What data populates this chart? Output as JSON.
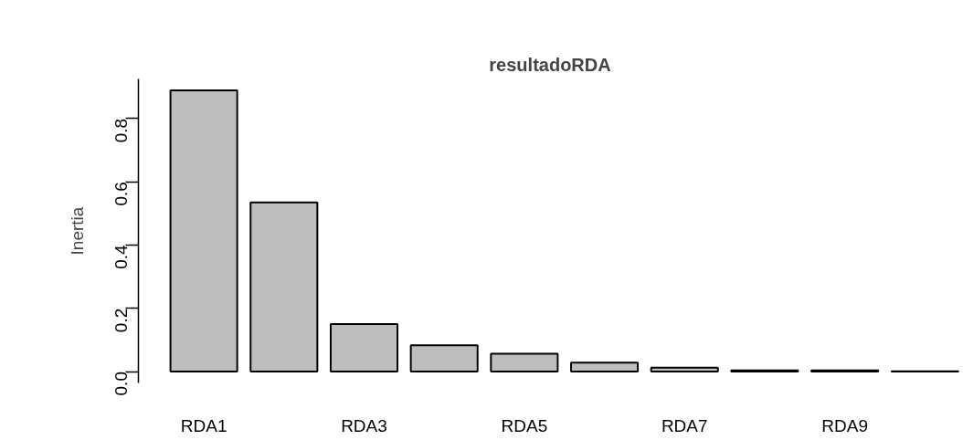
{
  "chart_data": {
    "type": "bar",
    "title": "resultadoRDA",
    "ylabel": "Inertia",
    "categories": [
      "RDA1",
      null,
      "RDA3",
      null,
      "RDA5",
      null,
      "RDA7",
      null,
      "RDA9",
      null
    ],
    "values": [
      0.889,
      0.535,
      0.15,
      0.083,
      0.056,
      0.028,
      0.012,
      0.004,
      0.004,
      0.001
    ],
    "color": "#bebebe",
    "ylim": [
      -0.036,
      0.925
    ],
    "yticks": [
      {
        "value": 0,
        "label": "0.0"
      },
      0.2,
      0.4,
      0.6,
      0.8
    ],
    "grid": false
  }
}
